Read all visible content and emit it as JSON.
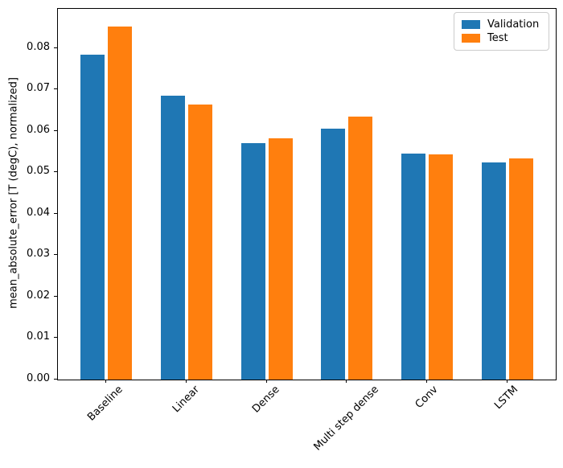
{
  "chart_data": {
    "type": "bar",
    "categories": [
      "Baseline",
      "Linear",
      "Dense",
      "Multi step dense",
      "Conv",
      "LSTM"
    ],
    "series": [
      {
        "name": "Validation",
        "color": "#1f77b4",
        "values": [
          0.0785,
          0.0686,
          0.0571,
          0.0606,
          0.0545,
          0.0524
        ]
      },
      {
        "name": "Test",
        "color": "#ff7f0e",
        "values": [
          0.0852,
          0.0663,
          0.0583,
          0.0634,
          0.0543,
          0.0533
        ]
      }
    ],
    "title": "",
    "xlabel": "",
    "ylabel": "mean_absolute_error [T (degC), normalized]",
    "ylim": [
      0,
      0.0895
    ],
    "xlim": [
      -0.602,
      5.602
    ],
    "yticks": [
      0.0,
      0.01,
      0.02,
      0.03,
      0.04,
      0.05,
      0.06,
      0.07,
      0.08
    ],
    "ytick_labels": [
      "0.00",
      "0.01",
      "0.02",
      "0.03",
      "0.04",
      "0.05",
      "0.06",
      "0.07",
      "0.08"
    ],
    "bar_width": 0.3,
    "bar_offset": 0.17,
    "grid": false,
    "legend_position": "upper right"
  },
  "legend": {
    "items": [
      {
        "label": "Validation",
        "color": "#1f77b4"
      },
      {
        "label": "Test",
        "color": "#ff7f0e"
      }
    ]
  }
}
